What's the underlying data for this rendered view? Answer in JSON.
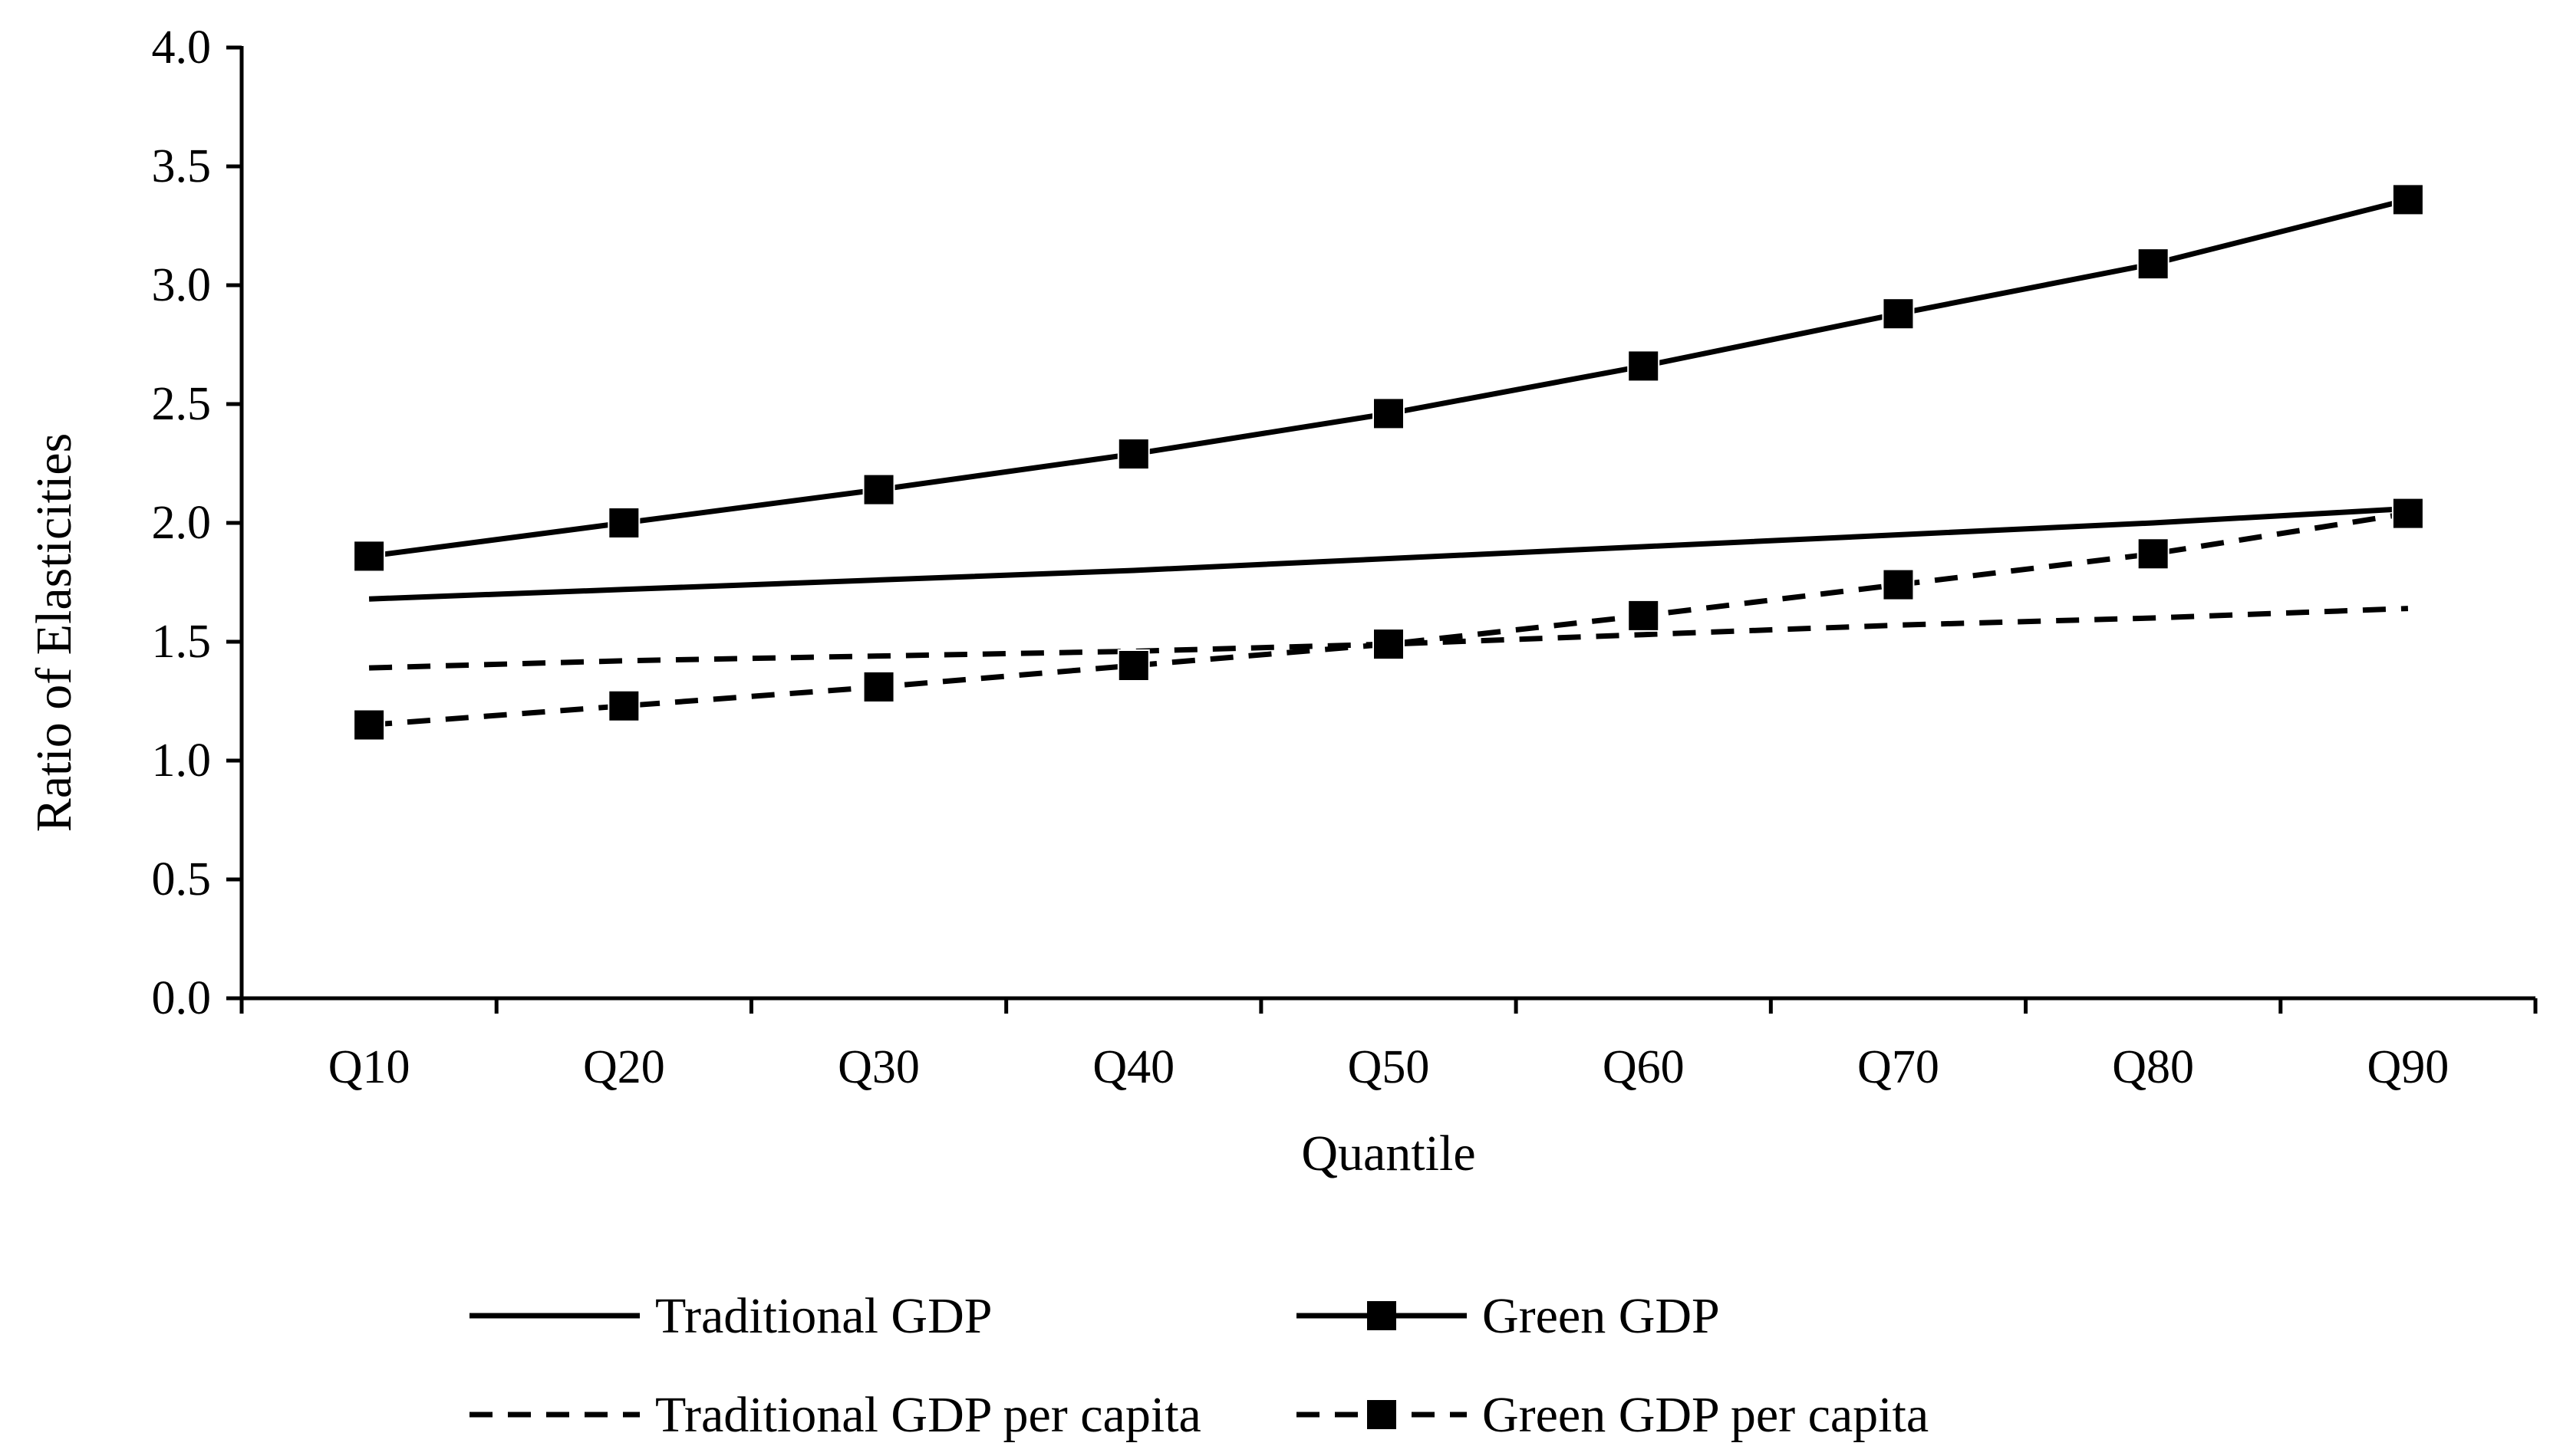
{
  "chart_data": {
    "type": "line",
    "title": "",
    "xlabel": "Quantile",
    "ylabel": "Ratio of Elasticities",
    "categories": [
      "Q10",
      "Q20",
      "Q30",
      "Q40",
      "Q50",
      "Q60",
      "Q70",
      "Q80",
      "Q90"
    ],
    "ylim": [
      0.0,
      4.0
    ],
    "yticks": [
      "0.0",
      "0.5",
      "1.0",
      "1.5",
      "2.0",
      "2.5",
      "3.0",
      "3.5",
      "4.0"
    ],
    "grid": false,
    "legend_position": "bottom",
    "series": [
      {
        "name": "Traditional GDP",
        "line": "solid",
        "marker": "none",
        "values": [
          1.68,
          1.72,
          1.76,
          1.8,
          1.85,
          1.9,
          1.95,
          2.0,
          2.06
        ]
      },
      {
        "name": "Green GDP",
        "line": "solid",
        "marker": "square",
        "values": [
          1.86,
          2.0,
          2.14,
          2.29,
          2.46,
          2.66,
          2.88,
          3.09,
          3.36
        ]
      },
      {
        "name": "Traditional GDP per capita",
        "line": "dashed",
        "marker": "none",
        "values": [
          1.39,
          1.42,
          1.44,
          1.46,
          1.49,
          1.53,
          1.57,
          1.6,
          1.64
        ]
      },
      {
        "name": "Green GDP per capita",
        "line": "dashed",
        "marker": "square",
        "values": [
          1.15,
          1.23,
          1.31,
          1.4,
          1.49,
          1.61,
          1.74,
          1.87,
          2.04
        ]
      }
    ],
    "colors": {
      "line": "#000000",
      "background": "#ffffff"
    }
  }
}
